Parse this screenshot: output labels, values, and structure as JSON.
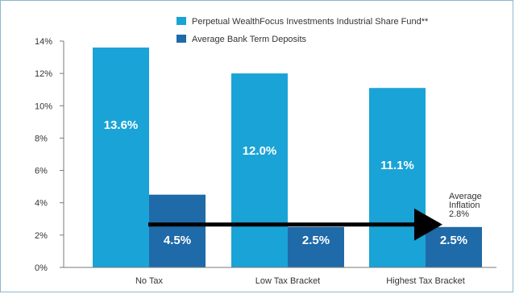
{
  "colors": {
    "series1": "#1aa3d6",
    "series2": "#1f6aa8",
    "arrow": "#000000",
    "axis": "#7a7a7a",
    "border": "#8eb7cf"
  },
  "chart_data": {
    "type": "bar",
    "categories": [
      "No Tax",
      "Low Tax Bracket",
      "Highest Tax Bracket"
    ],
    "series": [
      {
        "name": "Perpetual WealthFocus Investments Industrial Share Fund**",
        "values": [
          13.6,
          12.0,
          11.1
        ],
        "labels": [
          "13.6%",
          "12.0%",
          "11.1%"
        ]
      },
      {
        "name": "Average Bank Term Deposits",
        "values": [
          4.5,
          2.5,
          2.5
        ],
        "labels": [
          "4.5%",
          "2.5%",
          "2.5%"
        ]
      }
    ],
    "yticks": [
      "0%",
      "2%",
      "4%",
      "6%",
      "8%",
      "10%",
      "12%",
      "14%"
    ],
    "ylim": [
      0,
      14
    ],
    "grid": false,
    "legend_position": "top-right",
    "annotation": {
      "lines": [
        "Average",
        "Inflation",
        "2.8%"
      ],
      "value": 2.8
    }
  }
}
